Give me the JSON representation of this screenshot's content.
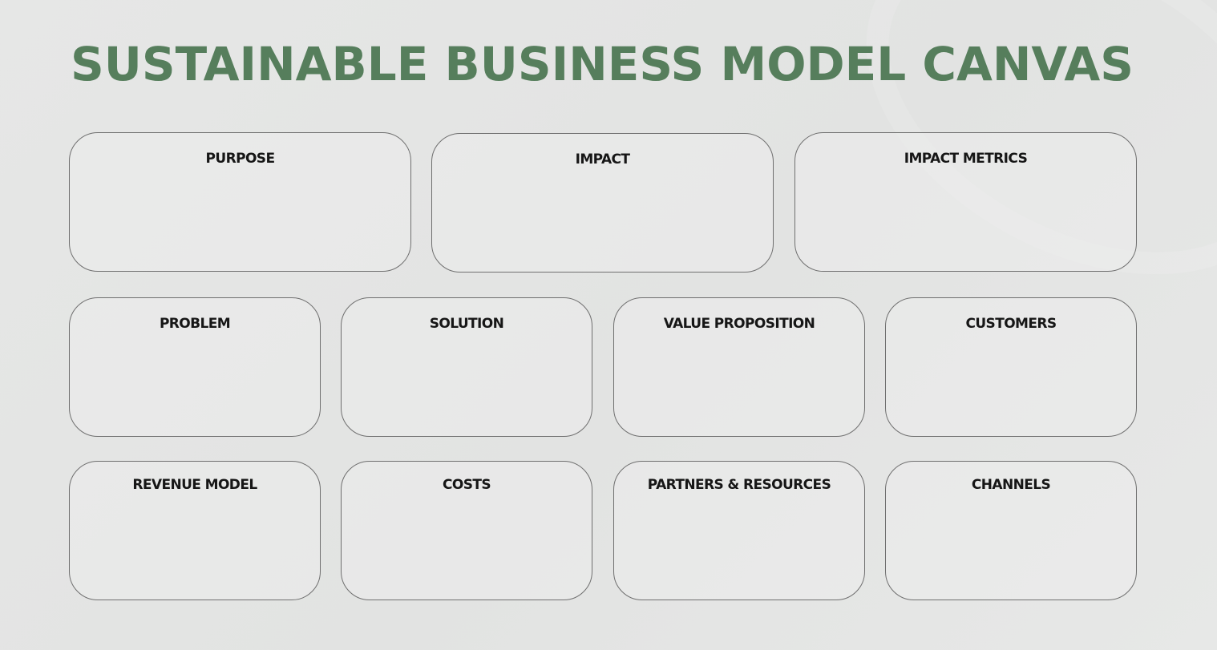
{
  "title": "SUSTAINABLE BUSINESS MODEL CANVAS",
  "colors": {
    "accent": "#567e5c",
    "box_border": "#6f6f6f",
    "label_text": "#161616"
  },
  "sections": {
    "purpose": "PURPOSE",
    "impact": "IMPACT",
    "impact_metrics": "IMPACT METRICS",
    "problem": "PROBLEM",
    "solution": "SOLUTION",
    "value_proposition": "VALUE PROPOSITION",
    "customers": "CUSTOMERS",
    "revenue_model": "REVENUE MODEL",
    "costs": "COSTS",
    "partners_resources": "PARTNERS & RESOURCES",
    "channels": "CHANNELS"
  }
}
